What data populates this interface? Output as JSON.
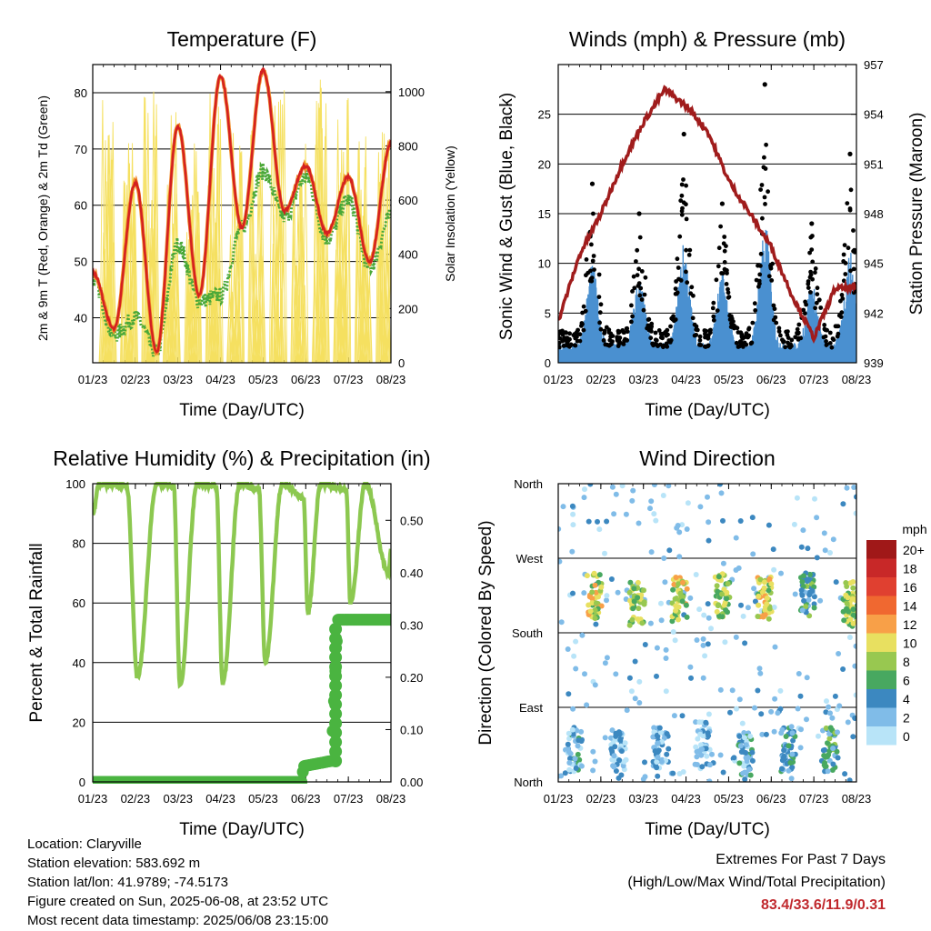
{
  "chart_data": [
    {
      "type": "line",
      "title": "Temperature (F)",
      "xlabel": "Time (Day/UTC)",
      "ylabel": "2m & 9m T (Red, Orange) & 2m Td (Green)",
      "ylabel_right": "Solar Insolation (Yellow)",
      "xticks": [
        "01/23",
        "02/23",
        "03/23",
        "04/23",
        "05/23",
        "06/23",
        "07/23",
        "08/23"
      ],
      "ylim": [
        32,
        85
      ],
      "yticks": [
        40,
        50,
        60,
        70,
        80
      ],
      "ylim_right": [
        0,
        1100
      ],
      "yticks_right": [
        0,
        200,
        400,
        600,
        800,
        1000
      ],
      "grid": true,
      "colors": {
        "t2m": "#d42020",
        "t9m": "#f08c28",
        "td2m": "#4aa838",
        "solar": "#f5e060"
      },
      "series": [
        {
          "key": "t2m",
          "x": [
            0,
            0.5,
            1,
            1.5,
            2,
            2.5,
            3,
            3.5,
            4,
            4.5,
            5,
            5.5,
            6,
            6.5,
            7
          ],
          "values": [
            48,
            38,
            64,
            34,
            74,
            44,
            83,
            56,
            84,
            59,
            67,
            55,
            65,
            50,
            71
          ]
        },
        {
          "key": "td2m",
          "x": [
            0,
            0.5,
            1,
            1.5,
            2,
            2.5,
            3,
            3.5,
            4,
            4.5,
            5,
            5.5,
            6,
            6.5,
            7
          ],
          "values": [
            47,
            37,
            40,
            34,
            53,
            43,
            44,
            56,
            66,
            58,
            65,
            54,
            61,
            49,
            58
          ]
        },
        {
          "key": "solar",
          "peaks_x": [
            0.85,
            1.6,
            2.0,
            3.0,
            3.45,
            4.0,
            4.8,
            6.7
          ],
          "peaks": [
            1030,
            860,
            1050,
            980,
            870,
            1040,
            850,
            920
          ]
        }
      ]
    },
    {
      "type": "scatter",
      "title": "Winds (mph) & Pressure (mb)",
      "xlabel": "Time (Day/UTC)",
      "ylabel": "Sonic Wind & Gust (Blue, Black)",
      "ylabel_right": "Station Pressure (Maroon)",
      "xticks": [
        "01/23",
        "02/23",
        "03/23",
        "04/23",
        "05/23",
        "06/23",
        "07/23",
        "08/23"
      ],
      "ylim": [
        0,
        30
      ],
      "yticks": [
        0,
        5,
        10,
        15,
        20,
        25
      ],
      "ylim_right": [
        939,
        957
      ],
      "yticks_right": [
        939,
        942,
        945,
        948,
        951,
        954,
        957
      ],
      "grid": true,
      "colors": {
        "wind": "#4a90d0",
        "gust": "#000000",
        "pressure": "#a01c1c"
      },
      "series": [
        {
          "key": "pressure",
          "x": [
            0,
            0.5,
            1,
            1.5,
            2,
            2.5,
            3,
            3.5,
            4,
            4.5,
            5,
            5.5,
            6,
            6.5,
            7
          ],
          "values": [
            941.5,
            945.5,
            948,
            951,
            953.5,
            955.5,
            954.5,
            953,
            950,
            948,
            946,
            943,
            940.5,
            943.5,
            943.5
          ]
        },
        {
          "key": "gust_peaks",
          "x": [
            0.8,
            1.9,
            2.95,
            3.85,
            4.85,
            5.95,
            6.85
          ],
          "values": [
            18,
            15,
            23,
            16,
            28,
            14,
            21
          ]
        }
      ]
    },
    {
      "type": "line",
      "title": "Relative Humidity (%) & Precipitation (in)",
      "xlabel": "Time (Day/UTC)",
      "ylabel": "Percent & Total Rainfall",
      "xticks": [
        "01/23",
        "02/23",
        "03/23",
        "04/23",
        "05/23",
        "06/23",
        "07/23",
        "08/23"
      ],
      "ylim": [
        0,
        100
      ],
      "yticks": [
        0,
        20,
        40,
        60,
        80,
        100
      ],
      "ylim_right": [
        0,
        0.57
      ],
      "yticks_right": [
        "0.00",
        "0.10",
        "0.20",
        "0.30",
        "0.40",
        "0.50"
      ],
      "grid": true,
      "colors": {
        "rh": "#8cc850",
        "precip": "#4ab440"
      },
      "series": [
        {
          "key": "rh",
          "x": [
            0,
            0.15,
            0.3,
            0.8,
            1.05,
            1.5,
            1.9,
            2.05,
            2.45,
            2.9,
            3.05,
            3.45,
            3.9,
            4.05,
            4.45,
            4.95,
            5.05,
            5.35,
            5.95,
            6.05,
            6.4,
            6.95,
            7
          ],
          "values": [
            90,
            100,
            100,
            99,
            35,
            100,
            99,
            32,
            100,
            99,
            33,
            100,
            98,
            40,
            100,
            95,
            57,
            100,
            98,
            60,
            100,
            70,
            78
          ]
        },
        {
          "key": "precip",
          "x": [
            0,
            4.9,
            4.95,
            5.6,
            5.7,
            5.75,
            7
          ],
          "values": [
            0,
            0,
            0.03,
            0.04,
            0.22,
            0.31,
            0.31
          ]
        }
      ]
    },
    {
      "type": "scatter",
      "title": "Wind Direction",
      "xlabel": "Time (Day/UTC)",
      "ylabel": "Direction (Colored By Speed)",
      "xticks": [
        "01/23",
        "02/23",
        "03/23",
        "04/23",
        "05/23",
        "06/23",
        "07/23",
        "08/23"
      ],
      "yticks": [
        "North",
        "East",
        "South",
        "West",
        "North"
      ],
      "ylim": [
        0,
        360
      ],
      "grid": true,
      "legend": {
        "title": "mph",
        "position": "right",
        "labels": [
          "20+",
          "18",
          "16",
          "14",
          "12",
          "10",
          "8",
          "6",
          "4",
          "2",
          "0"
        ],
        "colors": [
          "#a01818",
          "#c82828",
          "#e04030",
          "#f06830",
          "#f8a048",
          "#e8e060",
          "#98c850",
          "#48a860",
          "#3c88c0",
          "#80bce8",
          "#b8e4f8"
        ]
      },
      "clusters": [
        {
          "day": 0.85,
          "dir": 225,
          "speed": 9
        },
        {
          "day": 1.85,
          "dir": 215,
          "speed": 8
        },
        {
          "day": 2.85,
          "dir": 220,
          "speed": 9
        },
        {
          "day": 3.85,
          "dir": 225,
          "speed": 8
        },
        {
          "day": 4.85,
          "dir": 220,
          "speed": 9
        },
        {
          "day": 5.85,
          "dir": 225,
          "speed": 5
        },
        {
          "day": 6.85,
          "dir": 215,
          "speed": 8
        },
        {
          "day": 0.4,
          "dir": 40,
          "speed": 3
        },
        {
          "day": 1.4,
          "dir": 35,
          "speed": 2
        },
        {
          "day": 2.4,
          "dir": 40,
          "speed": 2
        },
        {
          "day": 3.4,
          "dir": 45,
          "speed": 2
        },
        {
          "day": 4.4,
          "dir": 35,
          "speed": 3
        },
        {
          "day": 5.4,
          "dir": 40,
          "speed": 4
        },
        {
          "day": 6.4,
          "dir": 40,
          "speed": 5
        }
      ]
    }
  ],
  "footer": {
    "location": "Location: Claryville",
    "elevation": "Station elevation: 583.692 m",
    "latlon": "Station lat/lon: 41.9789; -74.5173",
    "created": "Figure created on Sun, 2025-06-08, at 23:52 UTC",
    "recent": "Most recent data timestamp: 2025/06/08 23:15:00"
  },
  "extremes": {
    "line1": "Extremes For Past 7 Days",
    "line2": "(High/Low/Max Wind/Total Precipitation)",
    "values": "83.4/33.6/11.9/0.31"
  }
}
